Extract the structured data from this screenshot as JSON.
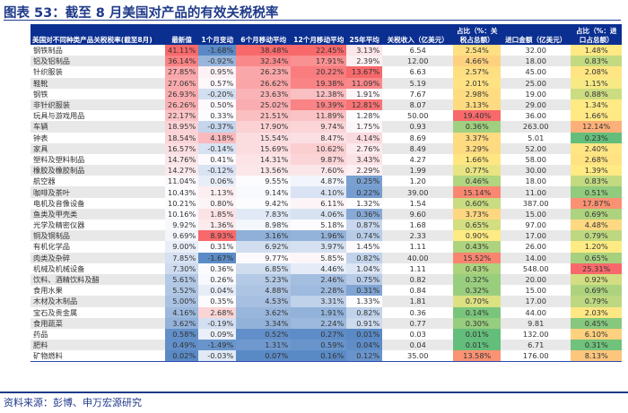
{
  "title": "图表 53：截至 8 月美国对产品的有效关税税率",
  "source": "资料来源：彭博、申万宏源研究",
  "chart_data": {
    "type": "table",
    "columns": [
      "美国对不同种类产品关税税率(截至8月)",
      "最新值",
      "1个月变动",
      "6个月移动平均",
      "12个月移动平均",
      "25年平均",
      "关税收入（亿美元）",
      "占比（%：关税占总额）",
      "进口金额（亿美元）",
      "占比（%：进口占总额）"
    ],
    "rows": [
      [
        "钢铁制品",
        "41.11%",
        "-1.68%",
        "38.48%",
        "22.45%",
        "3.13%",
        "6.54",
        "2.54%",
        "32.00",
        "1.48%"
      ],
      [
        "铝及铝制品",
        "36.14%",
        "-0.92%",
        "32.34%",
        "17.91%",
        "2.39%",
        "12.00",
        "4.66%",
        "18.00",
        "0.83%"
      ],
      [
        "针织服装",
        "27.85%",
        "0.95%",
        "26.23%",
        "20.22%",
        "13.67%",
        "6.63",
        "2.57%",
        "45.00",
        "2.08%"
      ],
      [
        "鞋靴",
        "27.06%",
        "0.57%",
        "26.62%",
        "19.38%",
        "11.09%",
        "5.19",
        "2.01%",
        "25.00",
        "1.15%"
      ],
      [
        "钢铁",
        "26.93%",
        "-0.20%",
        "23.63%",
        "12.38%",
        "1.91%",
        "7.67",
        "2.98%",
        "19.00",
        "0.88%"
      ],
      [
        "非针织服装",
        "26.26%",
        "0.50%",
        "25.02%",
        "19.39%",
        "12.81%",
        "8.07",
        "3.13%",
        "29.00",
        "1.34%"
      ],
      [
        "玩具与游戏用品",
        "22.17%",
        "0.33%",
        "21.51%",
        "11.89%",
        "1.28%",
        "50.00",
        "19.40%",
        "36.00",
        "1.66%"
      ],
      [
        "车辆",
        "18.95%",
        "-0.37%",
        "17.90%",
        "9.74%",
        "1.75%",
        "0.93",
        "0.36%",
        "263.00",
        "12.14%"
      ],
      [
        "钟表",
        "18.54%",
        "4.18%",
        "15.54%",
        "8.47%",
        "4.14%",
        "8.69",
        "3.37%",
        "5.01",
        "0.23%"
      ],
      [
        "家具",
        "16.57%",
        "-0.14%",
        "15.69%",
        "10.62%",
        "2.76%",
        "8.49",
        "3.29%",
        "52.00",
        "2.40%"
      ],
      [
        "塑料及塑料制品",
        "14.76%",
        "0.41%",
        "14.31%",
        "9.87%",
        "3.43%",
        "4.27",
        "1.66%",
        "58.00",
        "2.68%"
      ],
      [
        "橡胶及橡胶制品",
        "14.27%",
        "-0.12%",
        "13.56%",
        "7.60%",
        "2.29%",
        "1.99",
        "0.77%",
        "30.00",
        "1.39%"
      ],
      [
        "航空器",
        "11.04%",
        "0.06%",
        "9.55%",
        "4.87%",
        "0.25%",
        "1.20",
        "0.46%",
        "18.00",
        "0.83%"
      ],
      [
        "咖啡及茶叶",
        "10.43%",
        "1.13%",
        "9.14%",
        "4.10%",
        "0.22%",
        "39.00",
        "15.14%",
        "11.00",
        "0.51%"
      ],
      [
        "电机及音像设备",
        "10.21%",
        "0.80%",
        "9.42%",
        "6.11%",
        "1.32%",
        "1.54",
        "0.60%",
        "387.00",
        "17.87%"
      ],
      [
        "鱼类及甲壳类",
        "10.16%",
        "1.85%",
        "7.83%",
        "4.06%",
        "0.36%",
        "9.60",
        "3.73%",
        "15.00",
        "0.69%"
      ],
      [
        "光学及精密仪器",
        "9.92%",
        "1.36%",
        "8.98%",
        "5.18%",
        "0.87%",
        "1.68",
        "0.65%",
        "97.00",
        "4.48%"
      ],
      [
        "铜及铜制品",
        "9.69%",
        "8.93%",
        "3.16%",
        "1.96%",
        "0.74%",
        "2.33",
        "0.90%",
        "17.00",
        "0.79%"
      ],
      [
        "有机化学品",
        "9.00%",
        "0.31%",
        "6.92%",
        "3.97%",
        "1.45%",
        "1.11",
        "0.43%",
        "26.00",
        "1.20%"
      ],
      [
        "肉类及杂碎",
        "7.85%",
        "-1.67%",
        "9.77%",
        "5.85%",
        "0.82%",
        "40.00",
        "15.52%",
        "14.00",
        "0.65%"
      ],
      [
        "机械及机械设备",
        "7.30%",
        "0.36%",
        "6.85%",
        "4.46%",
        "1.04%",
        "1.11",
        "0.43%",
        "548.00",
        "25.31%"
      ],
      [
        "饮料、酒精饮料及醋",
        "5.61%",
        "0.26%",
        "5.23%",
        "2.46%",
        "0.75%",
        "0.82",
        "0.32%",
        "20.00",
        "0.92%"
      ],
      [
        "食用水果",
        "5.52%",
        "0.04%",
        "4.88%",
        "2.28%",
        "0.31%",
        "0.84",
        "0.32%",
        "15.00",
        "0.69%"
      ],
      [
        "木材及木制品",
        "5.00%",
        "0.35%",
        "4.53%",
        "3.31%",
        "1.33%",
        "1.81",
        "0.70%",
        "17.00",
        "0.79%"
      ],
      [
        "宝石及贵金属",
        "4.16%",
        "2.68%",
        "3.62%",
        "1.91%",
        "0.82%",
        "0.36",
        "0.14%",
        "44.00",
        "2.03%"
      ],
      [
        "食用蔬菜",
        "3.62%",
        "-0.19%",
        "3.34%",
        "2.24%",
        "0.91%",
        "0.77",
        "0.30%",
        "9.81",
        "0.45%"
      ],
      [
        "药品",
        "0.58%",
        "0.09%",
        "0.52%",
        "0.27%",
        "0.01%",
        "0.03",
        "0.01%",
        "132.00",
        "6.10%"
      ],
      [
        "肥料",
        "0.49%",
        "-1.49%",
        "1.31%",
        "0.59%",
        "0.04%",
        "0.04",
        "0.01%",
        "6.71",
        "0.31%"
      ],
      [
        "矿物燃料",
        "0.02%",
        "-0.03%",
        "0.07%",
        "0.16%",
        "0.12%",
        "35.00",
        "13.58%",
        "176.00",
        "8.13%"
      ]
    ]
  }
}
